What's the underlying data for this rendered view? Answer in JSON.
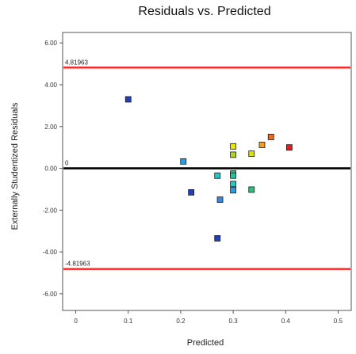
{
  "chart_data": {
    "type": "scatter",
    "title": "Residuals vs. Predicted",
    "xlabel": "Predicted",
    "ylabel": "Externally Studentized Residuals",
    "xlim": [
      -0.025,
      0.525
    ],
    "ylim": [
      -6.8,
      6.5
    ],
    "xticks": [
      0,
      0.1,
      0.2,
      0.3,
      0.4,
      0.5
    ],
    "xtick_labels": [
      "0",
      "0.1",
      "0.2",
      "0.3",
      "0.4",
      "0.5"
    ],
    "yticks": [
      6,
      4,
      2,
      0,
      -2,
      -4,
      -6
    ],
    "ytick_labels": [
      "6.00",
      "4.00",
      "2.00",
      "0.00",
      "-2.00",
      "-4.00",
      "-6.00"
    ],
    "grid": false,
    "reference_lines": [
      {
        "label": "4.81963",
        "y": 4.81963,
        "color": "#ff2020"
      },
      {
        "label": "0",
        "y": 0,
        "color": "#000000"
      },
      {
        "label": "-4.81963",
        "y": -4.81963,
        "color": "#ff2020"
      }
    ],
    "points": [
      {
        "x": 0.1,
        "y": 3.3,
        "color": "#1f3fbf"
      },
      {
        "x": 0.205,
        "y": 0.33,
        "color": "#2e9ee0"
      },
      {
        "x": 0.22,
        "y": -1.15,
        "color": "#1f3fbf"
      },
      {
        "x": 0.27,
        "y": -0.35,
        "color": "#26c6c6"
      },
      {
        "x": 0.27,
        "y": -3.35,
        "color": "#1f3fbf"
      },
      {
        "x": 0.275,
        "y": -1.5,
        "color": "#3a86e0"
      },
      {
        "x": 0.3,
        "y": 1.05,
        "color": "#e8e800"
      },
      {
        "x": 0.3,
        "y": 0.65,
        "color": "#a8d820"
      },
      {
        "x": 0.3,
        "y": -0.25,
        "color": "#2ec27a"
      },
      {
        "x": 0.3,
        "y": -0.35,
        "color": "#22c2a0"
      },
      {
        "x": 0.3,
        "y": -0.75,
        "color": "#26c6c6"
      },
      {
        "x": 0.3,
        "y": -1.05,
        "color": "#2e9ee0"
      },
      {
        "x": 0.335,
        "y": 0.7,
        "color": "#d8e010"
      },
      {
        "x": 0.335,
        "y": -1.02,
        "color": "#2ec27a"
      },
      {
        "x": 0.355,
        "y": 1.12,
        "color": "#f0a020"
      },
      {
        "x": 0.372,
        "y": 1.5,
        "color": "#f06a18"
      },
      {
        "x": 0.407,
        "y": 1.0,
        "color": "#e02020"
      }
    ]
  }
}
